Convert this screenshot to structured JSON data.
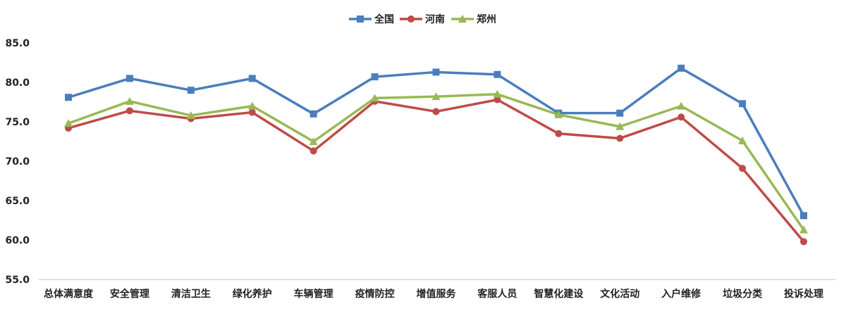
{
  "chart_data": {
    "type": "line",
    "title": "",
    "xlabel": "",
    "ylabel": "",
    "ylim": [
      55,
      85
    ],
    "yticks": [
      "55.0",
      "60.0",
      "65.0",
      "70.0",
      "75.0",
      "80.0",
      "85.0"
    ],
    "grid": false,
    "legend_position": "top-center",
    "categories": [
      "总体满意度",
      "安全管理",
      "清洁卫生",
      "绿化养护",
      "车辆管理",
      "疫情防控",
      "增值服务",
      "客服人员",
      "智慧化建设",
      "文化活动",
      "入户维修",
      "垃圾分类",
      "投诉处理"
    ],
    "series": [
      {
        "name": "全国",
        "color": "#4a7ebb",
        "marker": "square",
        "values": [
          78.1,
          80.5,
          79.0,
          80.5,
          76.0,
          80.7,
          81.3,
          81.0,
          76.1,
          76.1,
          81.8,
          77.3,
          63.1
        ]
      },
      {
        "name": "河南",
        "color": "#be4b48",
        "marker": "circle",
        "values": [
          74.2,
          76.4,
          75.4,
          76.2,
          71.3,
          77.6,
          76.3,
          77.8,
          73.5,
          72.9,
          75.6,
          69.1,
          59.8
        ]
      },
      {
        "name": "郑州",
        "color": "#98b954",
        "marker": "triangle",
        "values": [
          74.8,
          77.6,
          75.8,
          77.0,
          72.5,
          78.0,
          78.2,
          78.5,
          75.9,
          74.4,
          77.0,
          72.6,
          61.3
        ]
      }
    ]
  }
}
